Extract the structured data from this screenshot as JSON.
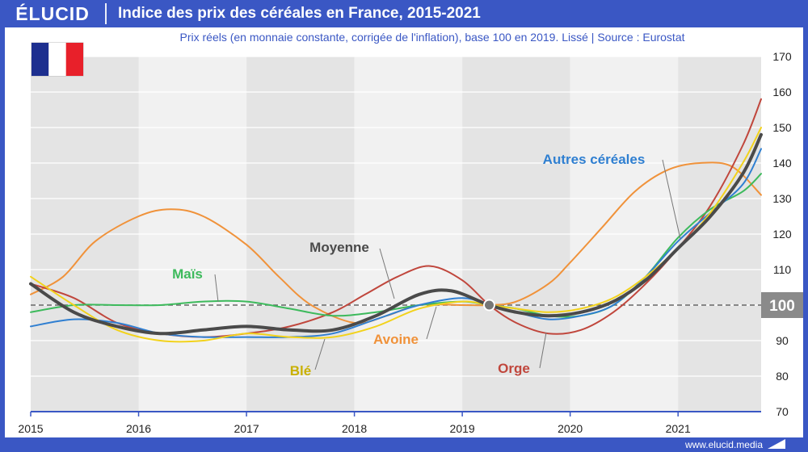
{
  "header": {
    "logo": "ÉLUCID",
    "title": "Indice des prix des céréales en France, 2015-2021",
    "subtitle": "Prix réels (en monnaie constante, corrigée de l'inflation), base 100 en 2019. Lissé  |  Source : Eurostat"
  },
  "footer": {
    "url": "www.elucid.media"
  },
  "flag": {
    "icon": "france-flag-icon",
    "colors": [
      "#1d2f8f",
      "#ffffff",
      "#e8202a"
    ]
  },
  "chart_data": {
    "type": "line",
    "title": "Indice des prix des céréales en France, 2015-2021",
    "xlim": [
      2015,
      2021.77
    ],
    "ylim": [
      70,
      170
    ],
    "x_ticks": [
      "2015",
      "2016",
      "2017",
      "2018",
      "2019",
      "2020",
      "2021"
    ],
    "y_ticks": [
      70,
      80,
      90,
      100,
      110,
      120,
      130,
      140,
      150,
      160,
      170
    ],
    "baseline": {
      "value": 100,
      "label": "100"
    },
    "reference_point": {
      "x": 2019.25,
      "y": 100
    },
    "series": [
      {
        "name": "Avoine",
        "color": "#f0923a",
        "width": 2,
        "points": [
          [
            2015,
            103
          ],
          [
            2015.3,
            108
          ],
          [
            2015.6,
            118
          ],
          [
            2016.0,
            125
          ],
          [
            2016.3,
            127
          ],
          [
            2016.6,
            125
          ],
          [
            2017.0,
            117
          ],
          [
            2017.3,
            108
          ],
          [
            2017.6,
            100
          ],
          [
            2018.0,
            95
          ],
          [
            2018.3,
            97
          ],
          [
            2018.6,
            100
          ],
          [
            2019.0,
            100
          ],
          [
            2019.25,
            100
          ],
          [
            2019.5,
            101
          ],
          [
            2019.8,
            106
          ],
          [
            2020.0,
            112
          ],
          [
            2020.3,
            122
          ],
          [
            2020.6,
            132
          ],
          [
            2020.9,
            138
          ],
          [
            2021.2,
            140
          ],
          [
            2021.5,
            139
          ],
          [
            2021.77,
            131
          ]
        ]
      },
      {
        "name": "Orge",
        "color": "#c0463c",
        "width": 2,
        "points": [
          [
            2015,
            106
          ],
          [
            2015.4,
            102
          ],
          [
            2015.8,
            95
          ],
          [
            2016.2,
            92
          ],
          [
            2016.6,
            91
          ],
          [
            2017.0,
            92
          ],
          [
            2017.4,
            94
          ],
          [
            2017.8,
            98
          ],
          [
            2018.1,
            103
          ],
          [
            2018.4,
            108
          ],
          [
            2018.7,
            111
          ],
          [
            2019.0,
            107
          ],
          [
            2019.25,
            100
          ],
          [
            2019.5,
            95
          ],
          [
            2019.8,
            92
          ],
          [
            2020.1,
            93
          ],
          [
            2020.4,
            98
          ],
          [
            2020.7,
            106
          ],
          [
            2021.0,
            116
          ],
          [
            2021.3,
            128
          ],
          [
            2021.6,
            145
          ],
          [
            2021.77,
            158
          ]
        ]
      },
      {
        "name": "Maïs",
        "color": "#3dba5c",
        "width": 2,
        "points": [
          [
            2015,
            98
          ],
          [
            2015.4,
            100
          ],
          [
            2015.8,
            100
          ],
          [
            2016.2,
            100
          ],
          [
            2016.6,
            101
          ],
          [
            2017.0,
            101
          ],
          [
            2017.4,
            99
          ],
          [
            2017.8,
            97
          ],
          [
            2018.2,
            98
          ],
          [
            2018.6,
            100
          ],
          [
            2019.0,
            101
          ],
          [
            2019.25,
            100
          ],
          [
            2019.5,
            99
          ],
          [
            2019.8,
            97
          ],
          [
            2020.1,
            97
          ],
          [
            2020.4,
            100
          ],
          [
            2020.7,
            108
          ],
          [
            2021.0,
            119
          ],
          [
            2021.3,
            127
          ],
          [
            2021.6,
            132
          ],
          [
            2021.77,
            137
          ]
        ]
      },
      {
        "name": "Autres céréales",
        "color": "#2f7fd1",
        "width": 2,
        "points": [
          [
            2015,
            94
          ],
          [
            2015.4,
            96
          ],
          [
            2015.8,
            95
          ],
          [
            2016.2,
            92
          ],
          [
            2016.6,
            91
          ],
          [
            2017.0,
            91
          ],
          [
            2017.4,
            91
          ],
          [
            2017.8,
            92
          ],
          [
            2018.2,
            96
          ],
          [
            2018.6,
            100
          ],
          [
            2019.0,
            102
          ],
          [
            2019.25,
            100
          ],
          [
            2019.5,
            98
          ],
          [
            2019.8,
            96
          ],
          [
            2020.1,
            97
          ],
          [
            2020.4,
            100
          ],
          [
            2020.7,
            108
          ],
          [
            2021.0,
            118
          ],
          [
            2021.3,
            126
          ],
          [
            2021.6,
            134
          ],
          [
            2021.77,
            144
          ]
        ]
      },
      {
        "name": "Blé",
        "color": "#f2d21b",
        "width": 2,
        "points": [
          [
            2015,
            108
          ],
          [
            2015.4,
            100
          ],
          [
            2015.8,
            93
          ],
          [
            2016.2,
            90
          ],
          [
            2016.6,
            90
          ],
          [
            2017.0,
            92
          ],
          [
            2017.4,
            91
          ],
          [
            2017.8,
            91
          ],
          [
            2018.2,
            94
          ],
          [
            2018.6,
            99
          ],
          [
            2019.0,
            101
          ],
          [
            2019.25,
            100
          ],
          [
            2019.5,
            99
          ],
          [
            2019.8,
            98
          ],
          [
            2020.1,
            99
          ],
          [
            2020.4,
            102
          ],
          [
            2020.7,
            108
          ],
          [
            2021.0,
            116
          ],
          [
            2021.3,
            126
          ],
          [
            2021.6,
            140
          ],
          [
            2021.77,
            150
          ]
        ]
      },
      {
        "name": "Moyenne",
        "color": "#4a4a4a",
        "width": 4,
        "points": [
          [
            2015,
            106
          ],
          [
            2015.4,
            98
          ],
          [
            2015.8,
            94
          ],
          [
            2016.2,
            92
          ],
          [
            2016.6,
            93
          ],
          [
            2017.0,
            94
          ],
          [
            2017.4,
            93
          ],
          [
            2017.8,
            93
          ],
          [
            2018.2,
            97
          ],
          [
            2018.6,
            103
          ],
          [
            2018.9,
            104
          ],
          [
            2019.25,
            100
          ],
          [
            2019.5,
            98
          ],
          [
            2019.8,
            97
          ],
          [
            2020.1,
            98
          ],
          [
            2020.4,
            101
          ],
          [
            2020.7,
            107
          ],
          [
            2021.0,
            116
          ],
          [
            2021.3,
            125
          ],
          [
            2021.6,
            137
          ],
          [
            2021.77,
            148
          ]
        ]
      }
    ],
    "labels": [
      {
        "series": "Autres céréales",
        "text": "Autres céréales",
        "color": "#2f7fd1"
      },
      {
        "series": "Moyenne",
        "text": "Moyenne",
        "color": "#4a4a4a"
      },
      {
        "series": "Maïs",
        "text": "Maïs",
        "color": "#3dba5c"
      },
      {
        "series": "Avoine",
        "text": "Avoine",
        "color": "#f0923a"
      },
      {
        "series": "Blé",
        "text": "Blé",
        "color": "#c9b000"
      },
      {
        "series": "Orge",
        "text": "Orge",
        "color": "#c0463c"
      }
    ]
  }
}
